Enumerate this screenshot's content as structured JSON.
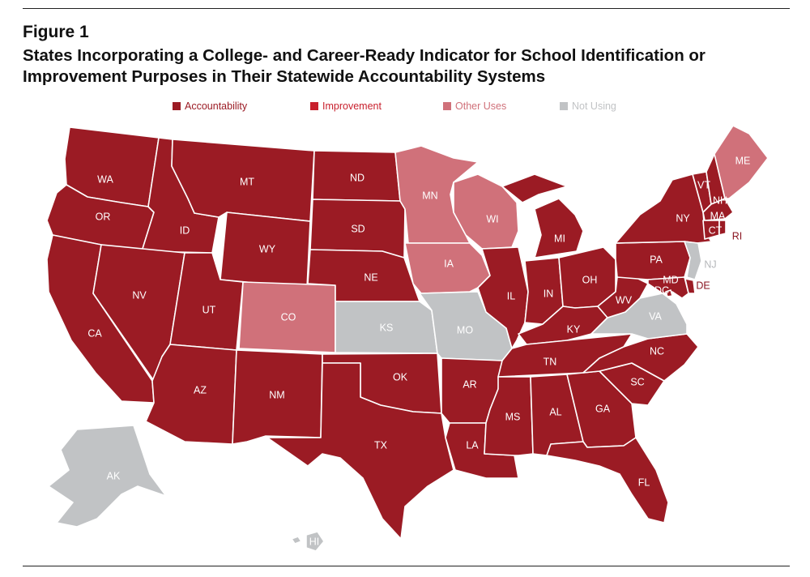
{
  "figure_label": "Figure 1",
  "title": "States Incorporating a College- and Career-Ready Indicator for School Identification or Improvement Purposes in Their Statewide Accountability Systems",
  "colors": {
    "accountability": "#9b1b24",
    "improvement": "#c8202d",
    "other_uses": "#d0717a",
    "not_using": "#c1c3c5"
  },
  "legend": [
    {
      "key": "accountability",
      "label": "Accountability"
    },
    {
      "key": "improvement",
      "label": "Improvement"
    },
    {
      "key": "other_uses",
      "label": "Other Uses"
    },
    {
      "key": "not_using",
      "label": "Not Using"
    }
  ],
  "states": [
    {
      "abbr": "WA",
      "category": "accountability"
    },
    {
      "abbr": "OR",
      "category": "accountability"
    },
    {
      "abbr": "CA",
      "category": "accountability"
    },
    {
      "abbr": "ID",
      "category": "accountability"
    },
    {
      "abbr": "NV",
      "category": "accountability"
    },
    {
      "abbr": "MT",
      "category": "accountability"
    },
    {
      "abbr": "WY",
      "category": "accountability"
    },
    {
      "abbr": "UT",
      "category": "accountability"
    },
    {
      "abbr": "AZ",
      "category": "accountability"
    },
    {
      "abbr": "CO",
      "category": "other_uses"
    },
    {
      "abbr": "NM",
      "category": "accountability"
    },
    {
      "abbr": "ND",
      "category": "accountability"
    },
    {
      "abbr": "SD",
      "category": "accountability"
    },
    {
      "abbr": "NE",
      "category": "accountability"
    },
    {
      "abbr": "KS",
      "category": "not_using"
    },
    {
      "abbr": "OK",
      "category": "accountability"
    },
    {
      "abbr": "TX",
      "category": "accountability"
    },
    {
      "abbr": "MN",
      "category": "other_uses"
    },
    {
      "abbr": "IA",
      "category": "other_uses"
    },
    {
      "abbr": "MO",
      "category": "not_using"
    },
    {
      "abbr": "AR",
      "category": "accountability"
    },
    {
      "abbr": "LA",
      "category": "accountability"
    },
    {
      "abbr": "WI",
      "category": "other_uses"
    },
    {
      "abbr": "IL",
      "category": "accountability"
    },
    {
      "abbr": "MI",
      "category": "accountability"
    },
    {
      "abbr": "IN",
      "category": "accountability"
    },
    {
      "abbr": "OH",
      "category": "accountability"
    },
    {
      "abbr": "KY",
      "category": "accountability"
    },
    {
      "abbr": "TN",
      "category": "accountability"
    },
    {
      "abbr": "MS",
      "category": "accountability"
    },
    {
      "abbr": "AL",
      "category": "accountability"
    },
    {
      "abbr": "GA",
      "category": "accountability"
    },
    {
      "abbr": "FL",
      "category": "accountability"
    },
    {
      "abbr": "SC",
      "category": "accountability"
    },
    {
      "abbr": "NC",
      "category": "accountability"
    },
    {
      "abbr": "VA",
      "category": "not_using"
    },
    {
      "abbr": "WV",
      "category": "accountability"
    },
    {
      "abbr": "PA",
      "category": "accountability"
    },
    {
      "abbr": "NY",
      "category": "accountability"
    },
    {
      "abbr": "VT",
      "category": "accountability"
    },
    {
      "abbr": "NH",
      "category": "accountability"
    },
    {
      "abbr": "ME",
      "category": "other_uses"
    },
    {
      "abbr": "MA",
      "category": "accountability"
    },
    {
      "abbr": "CT",
      "category": "accountability"
    },
    {
      "abbr": "RI",
      "category": "accountability"
    },
    {
      "abbr": "NJ",
      "category": "not_using"
    },
    {
      "abbr": "DE",
      "category": "accountability"
    },
    {
      "abbr": "MD",
      "category": "accountability"
    },
    {
      "abbr": "DC",
      "category": "accountability"
    },
    {
      "abbr": "AK",
      "category": "not_using"
    },
    {
      "abbr": "HI",
      "category": "not_using"
    }
  ]
}
